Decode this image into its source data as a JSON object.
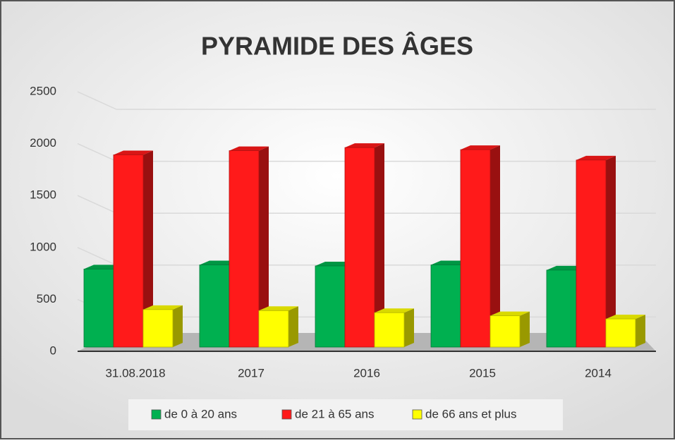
{
  "chart_data": {
    "type": "bar3d",
    "title": "PYRAMIDE DES ÂGES",
    "categories": [
      "31.08.2018",
      "2017",
      "2016",
      "2015",
      "2014"
    ],
    "series": [
      {
        "name": "de 0 à 20 ans",
        "color": "#00b050",
        "values": [
          860,
          900,
          890,
          900,
          850
        ]
      },
      {
        "name": "de 21 à 65 ans",
        "color": "#ff1a1a",
        "values": [
          1960,
          2000,
          2030,
          2010,
          1910
        ]
      },
      {
        "name": "de 66 ans et plus",
        "color": "#ffff00",
        "values": [
          470,
          460,
          440,
          410,
          380
        ]
      }
    ],
    "ylim": [
      0,
      2500
    ],
    "yticks": [
      0,
      500,
      1000,
      1500,
      2000,
      2500
    ],
    "grid": true,
    "legend": "bottom"
  }
}
